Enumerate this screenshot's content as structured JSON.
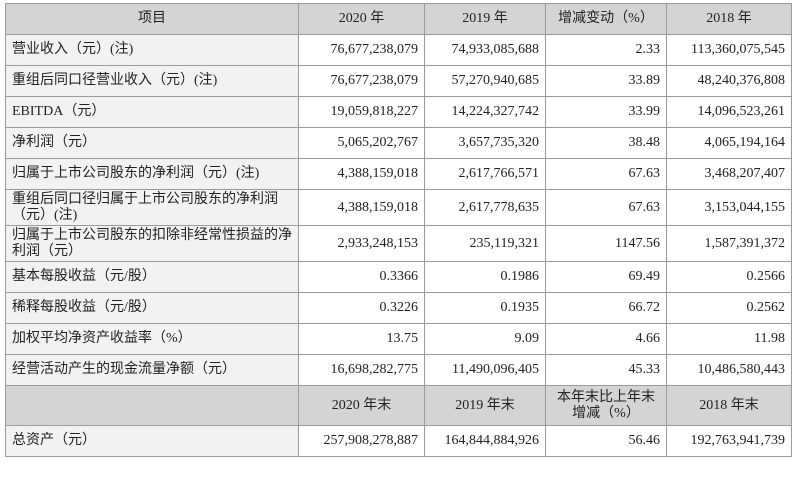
{
  "table": {
    "header": [
      "项目",
      "2020 年",
      "2019 年",
      "增减变动（%）",
      "2018 年"
    ],
    "rows": [
      [
        "营业收入（元）(注)",
        "76,677,238,079",
        "74,933,085,688",
        "2.33",
        "113,360,075,545"
      ],
      [
        "重组后同口径营业收入（元）(注)",
        "76,677,238,079",
        "57,270,940,685",
        "33.89",
        "48,240,376,808"
      ],
      [
        "EBITDA（元）",
        "19,059,818,227",
        "14,224,327,742",
        "33.99",
        "14,096,523,261"
      ],
      [
        "净利润（元）",
        "5,065,202,767",
        "3,657,735,320",
        "38.48",
        "4,065,194,164"
      ],
      [
        "归属于上市公司股东的净利润（元）(注)",
        "4,388,159,018",
        "2,617,766,571",
        "67.63",
        "3,468,207,407"
      ],
      [
        "重组后同口径归属于上市公司股东的净利润（元）(注)",
        "4,388,159,018",
        "2,617,778,635",
        "67.63",
        "3,153,044,155"
      ],
      [
        "归属于上市公司股东的扣除非经常性损益的净利润（元）",
        "2,933,248,153",
        "235,119,321",
        "1147.56",
        "1,587,391,372"
      ],
      [
        "基本每股收益（元/股）",
        "0.3366",
        "0.1986",
        "69.49",
        "0.2566"
      ],
      [
        "稀释每股收益（元/股）",
        "0.3226",
        "0.1935",
        "66.72",
        "0.2562"
      ],
      [
        "加权平均净资产收益率（%）",
        "13.75",
        "9.09",
        "4.66",
        "11.98"
      ],
      [
        "经营活动产生的现金流量净额（元）",
        "16,698,282,775",
        "11,490,096,405",
        "45.33",
        "10,486,580,443"
      ]
    ],
    "header2": [
      "2020 年末",
      "2019 年末",
      "本年末比上年末增减（%）",
      "2018 年末"
    ],
    "rows2": [
      [
        "总资产（元）",
        "257,908,278,887",
        "164,844,884,926",
        "56.46",
        "192,763,941,739"
      ]
    ]
  }
}
